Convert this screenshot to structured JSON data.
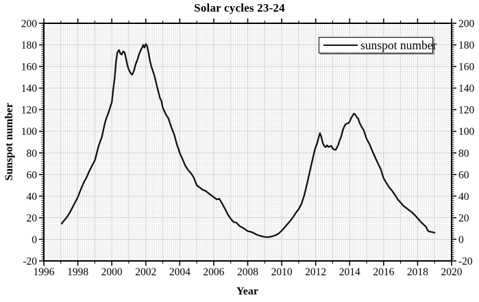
{
  "chart_data": {
    "type": "line",
    "title": "Solar cycles 23-24",
    "xlabel": "Year",
    "ylabel": "Sunspot number",
    "xlim": [
      1996,
      2020
    ],
    "ylim": [
      -20,
      200
    ],
    "x_major_ticks": [
      1996,
      1998,
      2000,
      2002,
      2004,
      2006,
      2008,
      2010,
      2012,
      2014,
      2016,
      2018,
      2020
    ],
    "y_major_ticks": [
      -20,
      0,
      20,
      40,
      60,
      80,
      100,
      120,
      140,
      160,
      180,
      200
    ],
    "x_minor_step": 1,
    "y_minor_step": 2,
    "grid": "major gridlines plus fine dotted minor mesh",
    "axes_mirrored": true,
    "legend": {
      "position": "top-right",
      "entries": [
        {
          "label": "sunspot number",
          "style": "solid-line",
          "color": "#111111"
        }
      ]
    },
    "series": [
      {
        "name": "sunspot number",
        "color": "#111111",
        "x": [
          1997.05,
          1997.17,
          1997.33,
          1997.5,
          1997.67,
          1997.83,
          1998.0,
          1998.17,
          1998.33,
          1998.5,
          1998.67,
          1998.83,
          1999.0,
          1999.1,
          1999.2,
          1999.3,
          1999.4,
          1999.5,
          1999.6,
          1999.7,
          1999.8,
          1999.9,
          2000.0,
          2000.08,
          2000.17,
          2000.25,
          2000.33,
          2000.42,
          2000.5,
          2000.58,
          2000.67,
          2000.75,
          2000.83,
          2000.92,
          2001.0,
          2001.1,
          2001.2,
          2001.3,
          2001.4,
          2001.5,
          2001.6,
          2001.7,
          2001.8,
          2001.85,
          2001.92,
          2002.0,
          2002.08,
          2002.17,
          2002.25,
          2002.33,
          2002.5,
          2002.67,
          2002.83,
          2002.92,
          2003.0,
          2003.17,
          2003.33,
          2003.5,
          2003.67,
          2003.83,
          2004.0,
          2004.17,
          2004.33,
          2004.5,
          2004.67,
          2004.83,
          2005.0,
          2005.17,
          2005.33,
          2005.5,
          2005.67,
          2005.83,
          2006.0,
          2006.17,
          2006.33,
          2006.5,
          2006.67,
          2006.83,
          2007.0,
          2007.17,
          2007.33,
          2007.5,
          2007.67,
          2007.83,
          2008.0,
          2008.17,
          2008.33,
          2008.5,
          2008.67,
          2008.83,
          2009.0,
          2009.17,
          2009.33,
          2009.5,
          2009.67,
          2009.83,
          2010.0,
          2010.17,
          2010.33,
          2010.5,
          2010.67,
          2010.83,
          2011.0,
          2011.17,
          2011.33,
          2011.5,
          2011.67,
          2011.83,
          2011.92,
          2012.0,
          2012.08,
          2012.17,
          2012.25,
          2012.33,
          2012.42,
          2012.5,
          2012.58,
          2012.67,
          2012.75,
          2012.83,
          2012.92,
          2013.0,
          2013.08,
          2013.17,
          2013.25,
          2013.33,
          2013.42,
          2013.5,
          2013.58,
          2013.67,
          2013.75,
          2013.83,
          2013.92,
          2014.0,
          2014.08,
          2014.17,
          2014.25,
          2014.33,
          2014.42,
          2014.5,
          2014.58,
          2014.67,
          2014.83,
          2015.0,
          2015.17,
          2015.33,
          2015.5,
          2015.67,
          2015.83,
          2016.0,
          2016.17,
          2016.33,
          2016.5,
          2016.67,
          2016.83,
          2017.0,
          2017.17,
          2017.33,
          2017.5,
          2017.67,
          2017.83,
          2018.0,
          2018.17,
          2018.33,
          2018.5,
          2018.58,
          2018.67,
          2018.83,
          2019.0
        ],
        "y": [
          14.5,
          17,
          20,
          24,
          29,
          34,
          39,
          46,
          52,
          57,
          63,
          68,
          73,
          79,
          85,
          90,
          94,
          101,
          108,
          113,
          117,
          122,
          127,
          138,
          150,
          165,
          173,
          175.2,
          172,
          171,
          174,
          173,
          168,
          161,
          157,
          154,
          152.3,
          156,
          162,
          166,
          171,
          175,
          178,
          180,
          177.5,
          180.8,
          179,
          172,
          165,
          160,
          152,
          141,
          131,
          128,
          122,
          116,
          112,
          104,
          97,
          88,
          80,
          74,
          68,
          64,
          61,
          57,
          50,
          48,
          46,
          45,
          43,
          41,
          39,
          37,
          37.5,
          33,
          28,
          23,
          19,
          16,
          15.5,
          12.5,
          11,
          9.5,
          7.5,
          7,
          6,
          4.5,
          3.5,
          2.8,
          2.2,
          2,
          2.3,
          3,
          4,
          5.5,
          8,
          11,
          14,
          17,
          20.5,
          24.5,
          28,
          33,
          41,
          52,
          64,
          75,
          81,
          85.5,
          88.5,
          94,
          98.3,
          95,
          89,
          86.5,
          85.3,
          87,
          85.5,
          86,
          86.5,
          84,
          83.2,
          82.8,
          85,
          87.5,
          92,
          95,
          100,
          104,
          106.5,
          107,
          107.5,
          109,
          112,
          114.5,
          116.4,
          115.5,
          113,
          112,
          108,
          105,
          101,
          93,
          88,
          82,
          76,
          70,
          65,
          56.5,
          52,
          48,
          45,
          41,
          37,
          34,
          31,
          29,
          27,
          25,
          22.5,
          19.5,
          16.5,
          14,
          11.5,
          8.5,
          7.2,
          6.8,
          6.1
        ]
      }
    ],
    "colors": {
      "curve": "#111111",
      "axis": "#000000",
      "grid_major": "#d2d2d2",
      "grid_minor": "#ebebeb",
      "background": "#ffffff"
    }
  }
}
